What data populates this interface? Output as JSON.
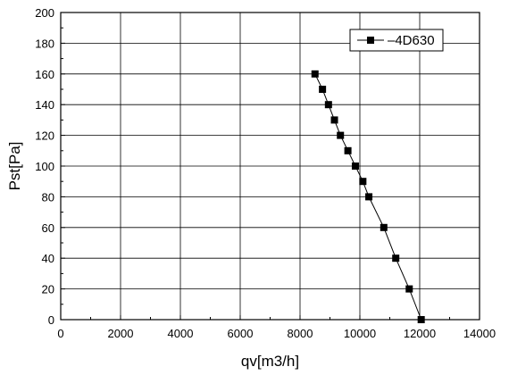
{
  "chart_data": {
    "type": "line",
    "title": "",
    "xlabel": "qv[m3/h]",
    "ylabel": "Pst[Pa]",
    "xlim": [
      0,
      14000
    ],
    "ylim": [
      0,
      200
    ],
    "x_ticks": [
      "0",
      "2000",
      "4000",
      "6000",
      "8000",
      "10000",
      "12000",
      "14000"
    ],
    "y_ticks": [
      "0",
      "20",
      "40",
      "60",
      "80",
      "100",
      "120",
      "140",
      "160",
      "180",
      "200"
    ],
    "grid": true,
    "legend_position": "top-right",
    "series": [
      {
        "name": "4D630",
        "color": "#000000",
        "marker": "square",
        "x": [
          8500,
          8750,
          8950,
          9150,
          9350,
          9600,
          9850,
          10100,
          10300,
          10800,
          11200,
          11650,
          12050
        ],
        "y": [
          160,
          150,
          140,
          130,
          120,
          110,
          100,
          90,
          80,
          60,
          40,
          20,
          0
        ]
      }
    ]
  }
}
